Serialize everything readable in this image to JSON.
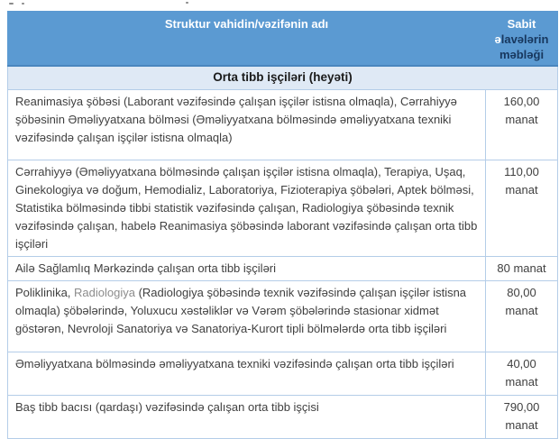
{
  "cropped_fragment": "partial text descenders cut off at top of screenshot",
  "table": {
    "header": {
      "col1": "Struktur vahidin/vəzifənin adı",
      "col2_white": "Sabit ə",
      "col2_dark": "lavələrin məbləği"
    },
    "section_title": "Orta tibb işçiləri (heyəti)",
    "rows": [
      {
        "text": "Reanimasiya şöbəsi (Laborant vəzifəsində çalışan işçilər istisna olmaqla), Cərrahiyyə şöbəsinin Əməliyyatxana bölməsi (Əməliyyatxana bölməsində əməliyyatxana texniki vəzifəsində çalışan işçilər istisna olmaqla)",
        "value": "160,00 manat"
      },
      {
        "text": "Cərrahiyyə (Əməliyyatxana bölməsində çalışan işçilər istisna olmaqla), Terapiya, Uşaq, Ginekologiya və doğum, Hemodializ, Laboratoriya, Fizioterapiya şöbələri, Aptek bölməsi, Statistika bölməsində tibbi statistik vəzifəsində çalışan, Radiologiya şöbəsində texnik vəzifəsində çalışan, habelə Reanimasiya şöbəsində laborant vəzifəsində çalışan orta tibb işçiləri",
        "value": "110,00 manat"
      },
      {
        "text": "Ailə Sağlamlıq Mərkəzində çalışan orta tibb işçiləri",
        "value": "80 manat"
      },
      {
        "parts": [
          {
            "t": "Poliklinika, "
          },
          {
            "t": "Radiologiya",
            "c": "gray"
          },
          {
            "t": " (Radiologiya şöbəsində texnik vəzifəsində çalışan işçilər istisna olmaqla) şöbələrində, Yoluxucu xəstəliklər və Vərəm şöbələrində stasionar xidmət göstərən, Nevroloji Sanatoriya və Sanatoriya-Kurort tipli bölmələrdə orta tibb işçiləri"
          }
        ],
        "value": "80,00 manat"
      },
      {
        "text": "Əməliyyatxana bölməsində əməliyyatxana texniki vəzifəsində çalışan orta tibb işçiləri",
        "value": "40,00 manat"
      },
      {
        "text": "Baş tibb bacısı (qardaşı) vəzifəsində çalışan orta tibb işçisi",
        "value": "790,00 manat"
      }
    ],
    "colors": {
      "header_bg": "#5b9ad2",
      "header_border": "#4a86be",
      "header_text_white": "#ffffff",
      "header_text_dark": "#17375e",
      "section_bg": "#dfe9f5",
      "cell_border": "#b4cde8",
      "body_text": "#404040",
      "gray_word": "#8c8c8c"
    }
  }
}
